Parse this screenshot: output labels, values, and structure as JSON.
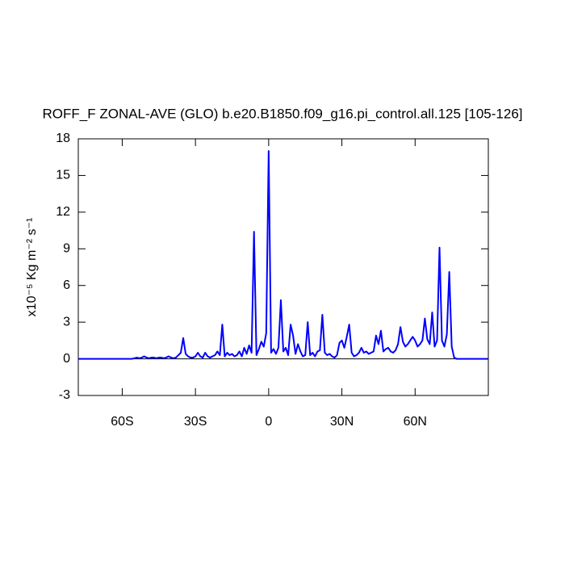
{
  "chart_data": {
    "type": "line",
    "title": "ROFF_F ZONAL-AVE (GLO) b.e20.B1850.f09_g16.pi_control.all.125 [105-126]",
    "y_label": "x10⁻⁵ Kg m⁻² s⁻¹",
    "xlim": [
      -78,
      90
    ],
    "ylim": [
      -3,
      18
    ],
    "xticks": [
      {
        "value": -60,
        "label": "60S"
      },
      {
        "value": -30,
        "label": "30S"
      },
      0,
      {
        "value": 30,
        "label": "30N"
      },
      {
        "value": 60,
        "label": "60N"
      }
    ],
    "yticks": [
      -3,
      0,
      3,
      6,
      9,
      12,
      15,
      18
    ],
    "reference_line": 0,
    "x": [
      -78,
      -77,
      -76,
      -75,
      -74,
      -73,
      -72,
      -71,
      -70,
      -69,
      -68,
      -67,
      -66,
      -65,
      -64,
      -63,
      -62,
      -61,
      -60,
      -59,
      -58,
      -57,
      -56,
      -55,
      -54,
      -53,
      -52,
      -51,
      -50,
      -49,
      -48,
      -47,
      -46,
      -45,
      -44,
      -43,
      -42,
      -41,
      -40,
      -39,
      -38,
      -37,
      -36,
      -35,
      -34,
      -33,
      -32,
      -31,
      -30,
      -29,
      -28,
      -27,
      -26,
      -25,
      -24,
      -23,
      -22,
      -21,
      -20,
      -19,
      -18,
      -17,
      -16,
      -15,
      -14,
      -13,
      -12,
      -11,
      -10,
      -9,
      -8,
      -7,
      -6,
      -5,
      -4,
      -3,
      -2,
      -1,
      0,
      1,
      2,
      3,
      4,
      5,
      6,
      7,
      8,
      9,
      10,
      11,
      12,
      13,
      14,
      15,
      16,
      17,
      18,
      19,
      20,
      21,
      22,
      23,
      24,
      25,
      26,
      27,
      28,
      29,
      30,
      31,
      32,
      33,
      34,
      35,
      36,
      37,
      38,
      39,
      40,
      41,
      42,
      43,
      44,
      45,
      46,
      47,
      48,
      49,
      50,
      51,
      52,
      53,
      54,
      55,
      56,
      57,
      58,
      59,
      60,
      61,
      62,
      63,
      64,
      65,
      66,
      67,
      68,
      69,
      70,
      71,
      72,
      73,
      74,
      75,
      76,
      77,
      78,
      79,
      80,
      81,
      82,
      83,
      84,
      85,
      86,
      87,
      88,
      89,
      90
    ],
    "series": [
      {
        "color": "#0000ff",
        "values": [
          0,
          0,
          0,
          0,
          0,
          0,
          0,
          0,
          0,
          0,
          0,
          0,
          0,
          0,
          0,
          0,
          0,
          0,
          0,
          0,
          0,
          0,
          0,
          0.05,
          0.1,
          0.05,
          0.1,
          0.2,
          0.1,
          0.05,
          0.1,
          0.1,
          0.05,
          0.1,
          0.1,
          0.05,
          0.1,
          0.2,
          0.1,
          0.05,
          0.1,
          0.3,
          0.5,
          1.7,
          0.4,
          0.2,
          0.1,
          0.1,
          0.2,
          0.5,
          0.2,
          0.1,
          0.5,
          0.2,
          0.1,
          0.2,
          0.3,
          0.6,
          0.3,
          2.8,
          0.2,
          0.5,
          0.3,
          0.4,
          0.2,
          0.3,
          0.6,
          0.2,
          0.9,
          0.4,
          1.1,
          0.5,
          10.4,
          0.3,
          0.8,
          1.4,
          1.0,
          2.1,
          17.0,
          0.5,
          0.8,
          0.4,
          0.9,
          4.8,
          0.6,
          0.9,
          0.3,
          2.8,
          1.9,
          0.4,
          1.2,
          0.6,
          0.2,
          0.3,
          3.0,
          0.3,
          0.5,
          0.2,
          0.6,
          0.7,
          3.6,
          0.5,
          0.3,
          0.4,
          0.2,
          0.1,
          0.3,
          1.3,
          1.5,
          0.9,
          1.8,
          2.8,
          0.5,
          0.2,
          0.3,
          0.5,
          0.9,
          0.5,
          0.6,
          0.4,
          0.5,
          0.6,
          1.9,
          1.2,
          2.3,
          0.6,
          0.8,
          0.9,
          0.6,
          0.5,
          0.7,
          1.2,
          2.6,
          1.4,
          1.0,
          1.2,
          1.5,
          1.8,
          1.5,
          1.0,
          1.2,
          1.5,
          3.3,
          1.6,
          1.2,
          3.8,
          1.0,
          1.5,
          9.1,
          1.5,
          1.0,
          2.0,
          7.1,
          1.0,
          0.1,
          0,
          0,
          0,
          0,
          0,
          0,
          0,
          0,
          0,
          0,
          0,
          0,
          0,
          0
        ]
      }
    ]
  }
}
